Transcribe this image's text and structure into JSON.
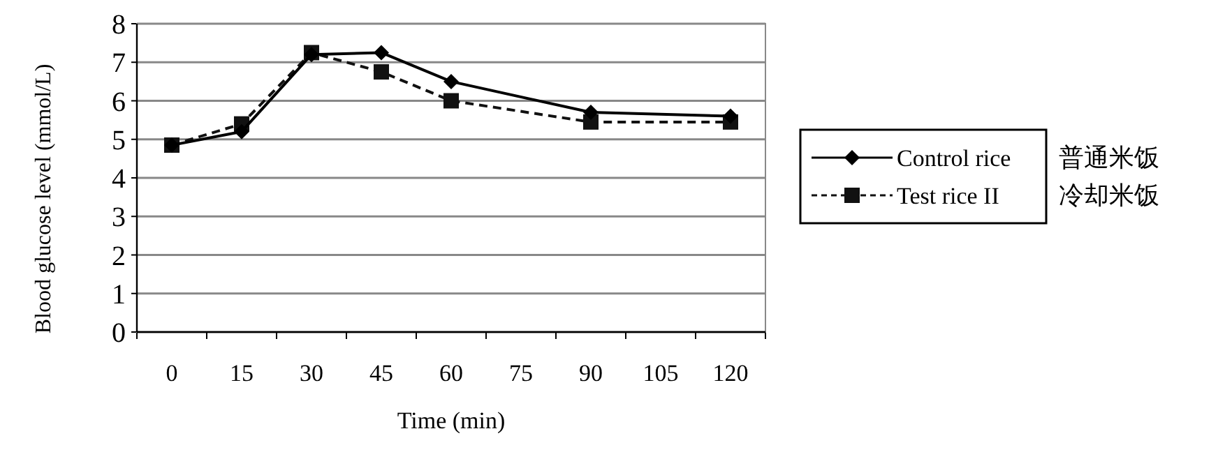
{
  "chart_data": {
    "type": "line",
    "ylabel": "Blood glucose level (mmol/L)",
    "xlabel": "Time (min)",
    "x": [
      0,
      15,
      30,
      45,
      60,
      90,
      120
    ],
    "series": [
      {
        "name": "Control rice",
        "color": "#000000",
        "marker": "diamond",
        "line_style": "solid",
        "values": [
          4.85,
          5.2,
          7.2,
          7.25,
          6.5,
          5.7,
          5.6
        ]
      },
      {
        "name": "Test rice II",
        "color": "#111111",
        "marker": "square",
        "line_style": "dashed",
        "values": [
          4.85,
          5.4,
          7.25,
          6.75,
          6.0,
          5.45,
          5.45
        ]
      }
    ],
    "xlim": [
      -7.5,
      127.5
    ],
    "xticks": [
      0,
      15,
      30,
      45,
      60,
      75,
      90,
      105,
      120
    ],
    "ylim": [
      0,
      8
    ],
    "yticks": [
      0,
      1,
      2,
      3,
      4,
      5,
      6,
      7,
      8
    ],
    "grid": "y",
    "legend": "right",
    "annotations": [
      "普通米饭",
      "冷却米饭"
    ]
  }
}
